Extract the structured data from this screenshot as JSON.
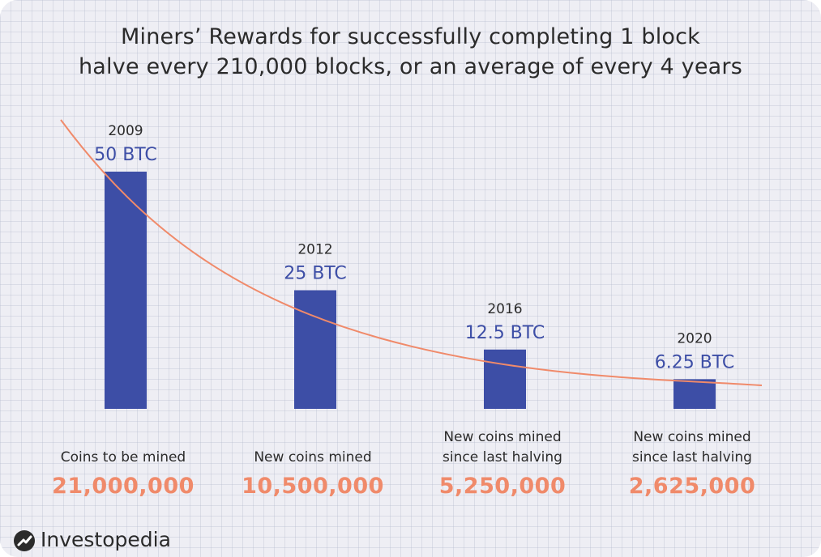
{
  "title": {
    "line1": "Miners’ Rewards for successfully completing 1 block",
    "line2": "halve every 210,000 blocks, or an average of every 4 years"
  },
  "chart_data": {
    "type": "bar",
    "title": "Miners’ Rewards for successfully completing 1 block halve every 210,000 blocks, or an average of every 4 years",
    "categories": [
      "2009",
      "2012",
      "2016",
      "2020"
    ],
    "values": [
      50,
      25,
      12.5,
      6.25
    ],
    "value_labels": [
      "50 BTC",
      "25 BTC",
      "12.5 BTC",
      "6.25 BTC"
    ],
    "captions": [
      [
        "Coins to be mined"
      ],
      [
        "New coins mined"
      ],
      [
        "New coins mined",
        "since last halving"
      ],
      [
        "New coins mined",
        "since last halving"
      ]
    ],
    "amounts": [
      "21,000,000",
      "10,500,000",
      "5,250,000",
      "2,625,000"
    ],
    "has_trend_curve": true,
    "grid": true,
    "colors": {
      "bar": "#3d4ea6",
      "curve": "#f08a6a",
      "amount": "#f08a6a",
      "background": "#eeeef4"
    }
  },
  "brand": {
    "name": "Investopedia",
    "logo_icon": "investopedia-logo-icon"
  }
}
